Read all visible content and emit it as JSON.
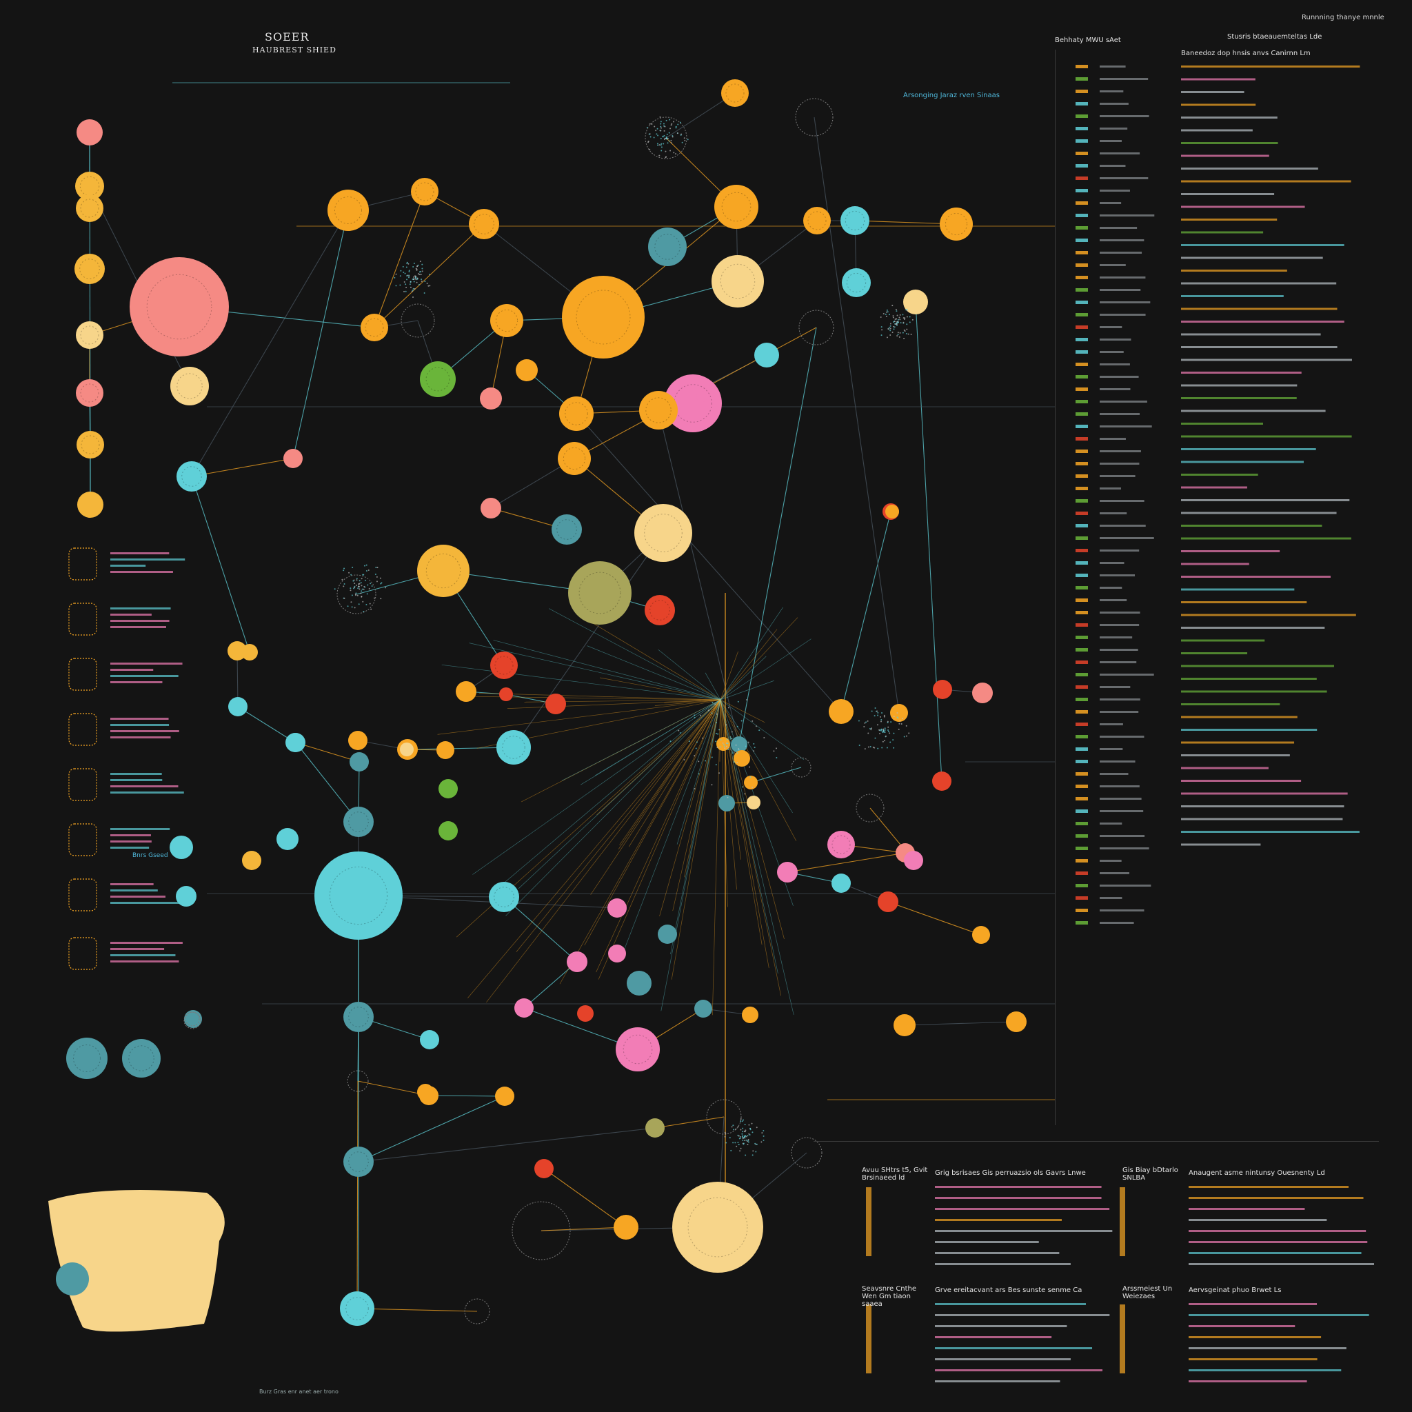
{
  "header": {
    "title": "SOEER",
    "subtitle": "HAUBREST SHIED",
    "top_right": "Runnning thanye mnnle"
  },
  "labels": {
    "network_label": "Arsonging Jaraz rven Sinaas",
    "right_col_a_title": "Behhaty MWU sAet",
    "right_col_b_title": "Stusris btaeauemteltas Lde",
    "right_col_b_sub": "Baneedoz dop hnsis anvs Canirnn Lm",
    "bottom_a_title": "Avuu SHtrs t5, Gvit Brsinaeed ld",
    "bottom_a_sub": "Grig bsrisaes Gis perruazsio ols Gavrs Lnwe",
    "bottom_b_title": "Gis Biay bDtarlo SNLBA",
    "bottom_b_sub": "Anaugent asme nintunsy Ouesnenty Ld",
    "bottom_c_title": "Seavsnre Cnthe Wen Gm tiaon saaea",
    "bottom_c_sub": "Grve ereitacvant ars Bes sunste senme Ca",
    "bottom_d_title": "Arssmeiest Un Weiezaes",
    "bottom_d_sub": "Aervsgeinat phuo Brwet Ls",
    "footer": "Burz Gras enr anet aer trono",
    "left_tag": "Bnrs Gseed"
  },
  "colors": {
    "background": "#141414",
    "orange": "#f7a623",
    "amber": "#f4b63a",
    "red": "#e5432a",
    "pink": "#f27db6",
    "salmon": "#f58a84",
    "cyan": "#5fd0d8",
    "teal": "#4f9aa3",
    "green": "#6ab53a",
    "cream": "#f7d58a",
    "olive": "#a8a55a",
    "line": "#4a5560"
  }
}
